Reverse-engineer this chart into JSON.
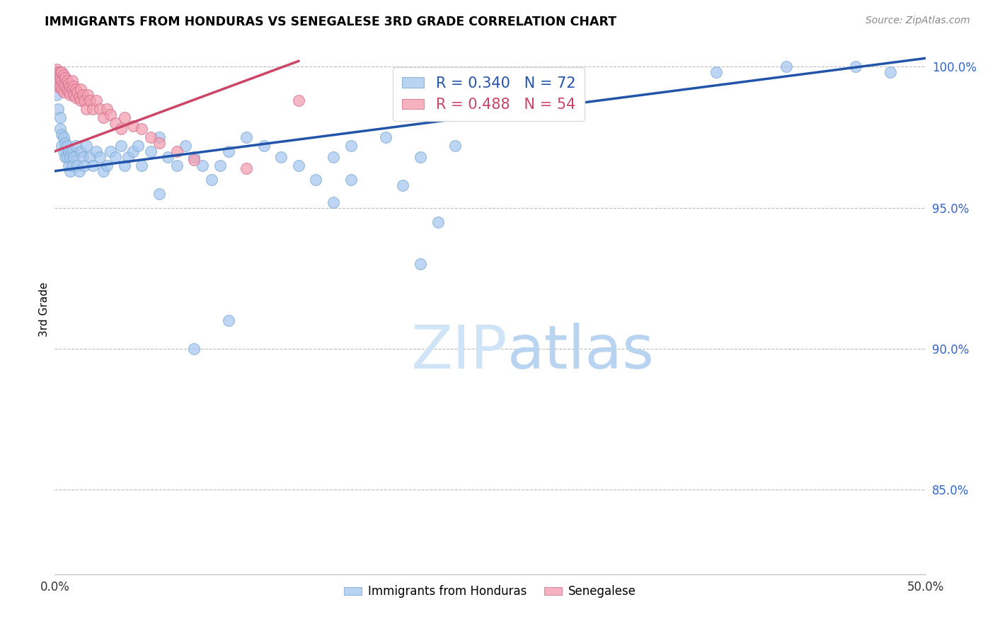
{
  "title": "IMMIGRANTS FROM HONDURAS VS SENEGALESE 3RD GRADE CORRELATION CHART",
  "source": "Source: ZipAtlas.com",
  "ylabel": "3rd Grade",
  "xlim": [
    0.0,
    0.5
  ],
  "ylim": [
    0.82,
    1.008
  ],
  "yticks": [
    0.85,
    0.9,
    0.95,
    1.0
  ],
  "yticklabels": [
    "85.0%",
    "90.0%",
    "95.0%",
    "100.0%"
  ],
  "legend_label1": "Immigrants from Honduras",
  "legend_label2": "Senegalese",
  "R1": 0.34,
  "N1": 72,
  "R2": 0.488,
  "N2": 54,
  "blue_color": "#a8c8f0",
  "blue_edge_color": "#7aaad0",
  "blue_line_color": "#2255aa",
  "pink_color": "#f4a0b0",
  "pink_edge_color": "#d07090",
  "pink_line_color": "#cc4466",
  "grid_color": "#bbbbbb",
  "watermark_color": "#d0e4f8",
  "blue_x": [
    0.001,
    0.002,
    0.003,
    0.003,
    0.004,
    0.004,
    0.005,
    0.005,
    0.006,
    0.006,
    0.007,
    0.007,
    0.008,
    0.008,
    0.009,
    0.009,
    0.01,
    0.01,
    0.011,
    0.012,
    0.013,
    0.014,
    0.015,
    0.016,
    0.017,
    0.018,
    0.02,
    0.022,
    0.024,
    0.026,
    0.028,
    0.03,
    0.032,
    0.035,
    0.038,
    0.04,
    0.042,
    0.045,
    0.048,
    0.05,
    0.055,
    0.06,
    0.065,
    0.07,
    0.075,
    0.08,
    0.085,
    0.09,
    0.095,
    0.1,
    0.11,
    0.12,
    0.13,
    0.14,
    0.15,
    0.16,
    0.17,
    0.19,
    0.21,
    0.23,
    0.16,
    0.17,
    0.2,
    0.21,
    0.22,
    0.06,
    0.08,
    0.1,
    0.38,
    0.42,
    0.46,
    0.48
  ],
  "blue_y": [
    0.99,
    0.985,
    0.982,
    0.978,
    0.976,
    0.972,
    0.975,
    0.97,
    0.973,
    0.968,
    0.972,
    0.968,
    0.97,
    0.965,
    0.968,
    0.963,
    0.97,
    0.965,
    0.968,
    0.972,
    0.965,
    0.963,
    0.97,
    0.968,
    0.965,
    0.972,
    0.968,
    0.965,
    0.97,
    0.968,
    0.963,
    0.965,
    0.97,
    0.968,
    0.972,
    0.965,
    0.968,
    0.97,
    0.972,
    0.965,
    0.97,
    0.975,
    0.968,
    0.965,
    0.972,
    0.968,
    0.965,
    0.96,
    0.965,
    0.97,
    0.975,
    0.972,
    0.968,
    0.965,
    0.96,
    0.968,
    0.972,
    0.975,
    0.968,
    0.972,
    0.952,
    0.96,
    0.958,
    0.93,
    0.945,
    0.955,
    0.9,
    0.91,
    0.998,
    1.0,
    1.0,
    0.998
  ],
  "pink_x": [
    0.001,
    0.001,
    0.002,
    0.002,
    0.002,
    0.003,
    0.003,
    0.003,
    0.004,
    0.004,
    0.004,
    0.005,
    0.005,
    0.005,
    0.006,
    0.006,
    0.007,
    0.007,
    0.008,
    0.008,
    0.009,
    0.009,
    0.01,
    0.01,
    0.011,
    0.011,
    0.012,
    0.012,
    0.013,
    0.014,
    0.015,
    0.015,
    0.016,
    0.017,
    0.018,
    0.019,
    0.02,
    0.022,
    0.024,
    0.026,
    0.028,
    0.03,
    0.032,
    0.035,
    0.038,
    0.04,
    0.045,
    0.05,
    0.055,
    0.06,
    0.07,
    0.08,
    0.11,
    0.14
  ],
  "pink_y": [
    0.999,
    0.997,
    0.998,
    0.995,
    0.993,
    0.998,
    0.996,
    0.993,
    0.998,
    0.995,
    0.992,
    0.997,
    0.994,
    0.991,
    0.996,
    0.993,
    0.995,
    0.992,
    0.994,
    0.991,
    0.993,
    0.99,
    0.995,
    0.992,
    0.993,
    0.99,
    0.992,
    0.989,
    0.991,
    0.989,
    0.992,
    0.988,
    0.99,
    0.988,
    0.985,
    0.99,
    0.988,
    0.985,
    0.988,
    0.985,
    0.982,
    0.985,
    0.983,
    0.98,
    0.978,
    0.982,
    0.979,
    0.978,
    0.975,
    0.973,
    0.97,
    0.967,
    0.964,
    0.988
  ],
  "blue_line_x0": 0.0,
  "blue_line_x1": 0.5,
  "blue_line_y0": 0.963,
  "blue_line_y1": 1.003,
  "pink_line_x0": 0.0,
  "pink_line_x1": 0.14,
  "pink_line_y0": 0.97,
  "pink_line_y1": 1.002
}
